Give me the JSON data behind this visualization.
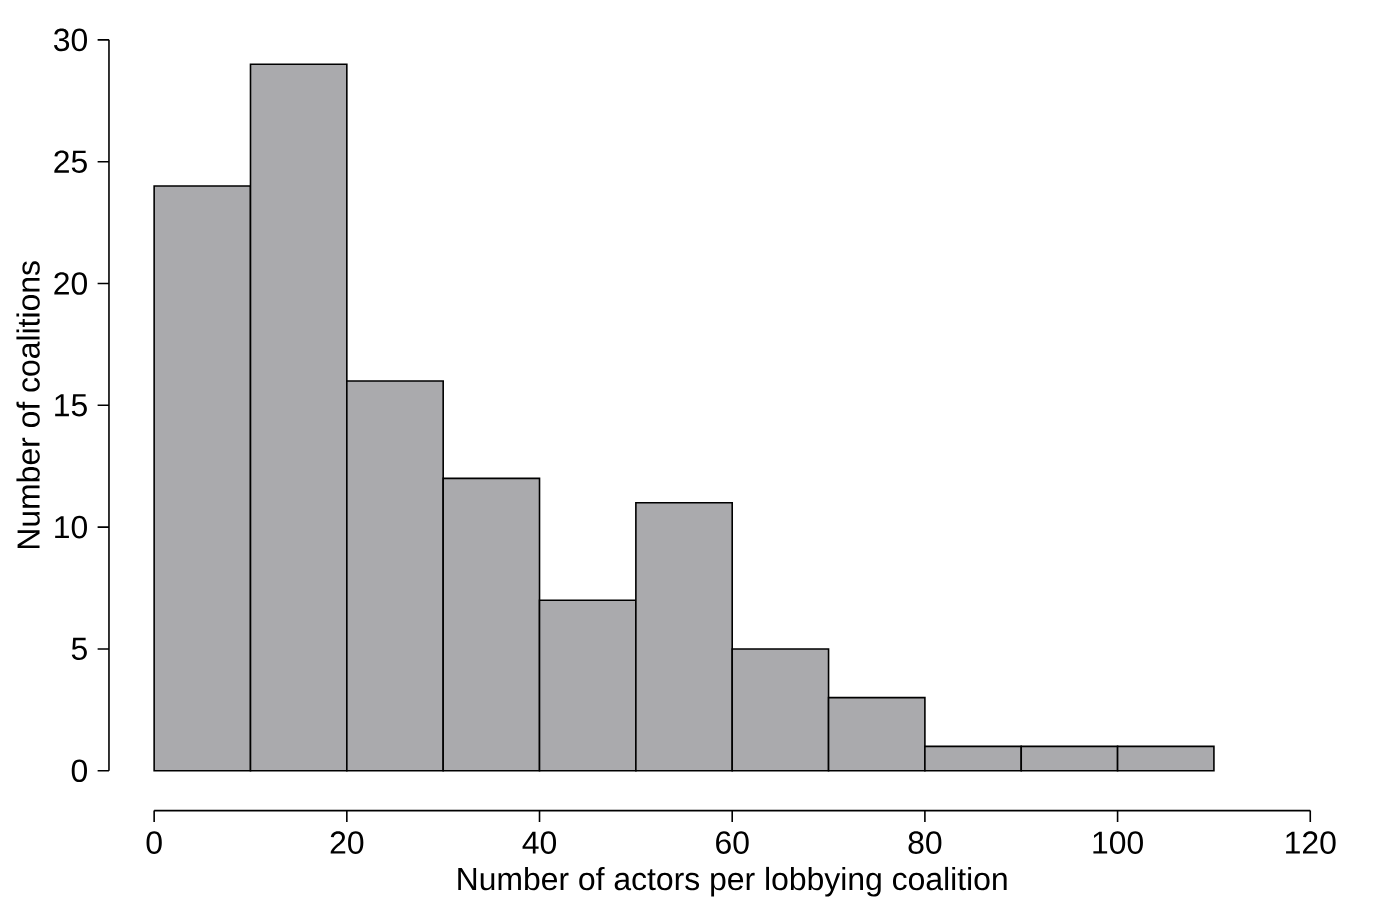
{
  "chart_data": {
    "type": "histogram",
    "bins": [
      0,
      10,
      20,
      30,
      40,
      50,
      60,
      70,
      80,
      90,
      100,
      110
    ],
    "values": [
      24,
      29,
      16,
      12,
      7,
      11,
      5,
      3,
      1,
      1,
      1
    ],
    "color": "#aaaaad",
    "xlabel": "Number of actors per lobbying coalition",
    "ylabel": "Number of coalitions",
    "xlim": [
      0,
      120
    ],
    "ylim": [
      0,
      30
    ],
    "xticks": [
      0,
      20,
      40,
      60,
      80,
      100,
      120
    ],
    "yticks": [
      0,
      5,
      10,
      15,
      20,
      25,
      30
    ]
  }
}
